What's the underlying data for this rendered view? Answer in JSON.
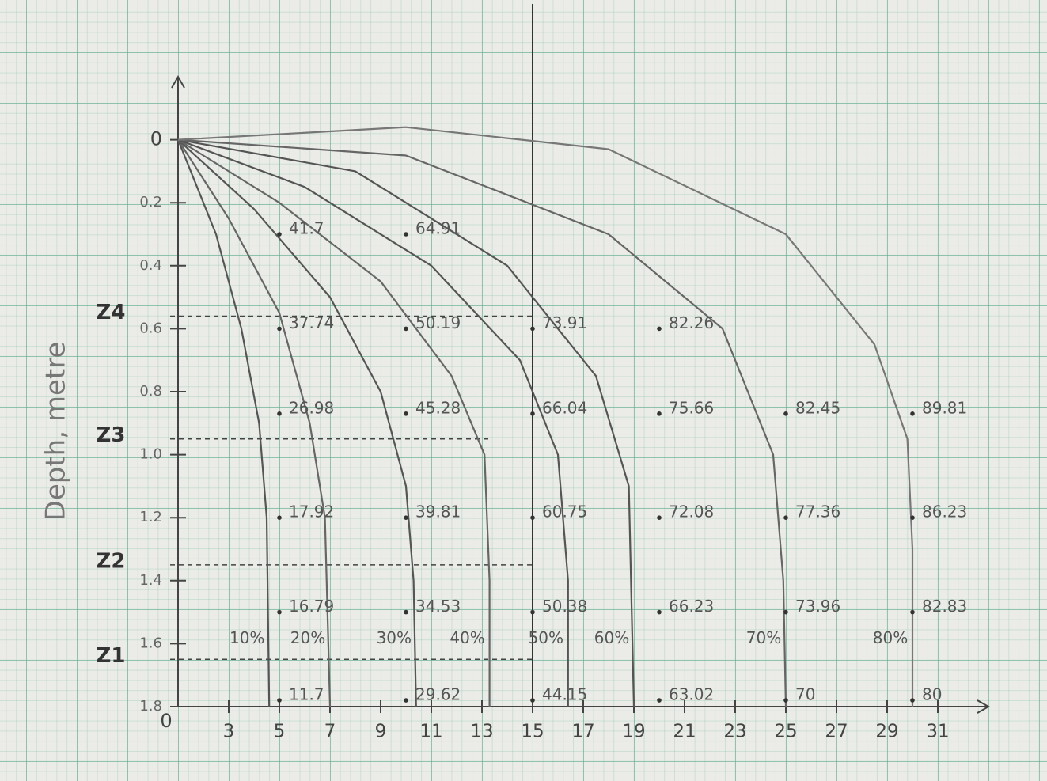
{
  "chart_data": {
    "type": "isoline",
    "y_label": "Depth, metre",
    "origin_label": "0",
    "xlim": [
      1,
      33
    ],
    "xticks": [
      3,
      5,
      7,
      9,
      11,
      13,
      15,
      17,
      19,
      21,
      23,
      25,
      27,
      29,
      31
    ],
    "ylim": [
      -0.2,
      1.8
    ],
    "y_inverted": true,
    "yticks": [
      0,
      0.2,
      0.4,
      0.6,
      0.8,
      {
        "value": 1,
        "label": "1.0"
      },
      1.2,
      1.4,
      1.6,
      1.8
    ],
    "series": [
      {
        "name": "10%",
        "color": "#555",
        "x": [
          1,
          2.5,
          3.5,
          4.2,
          4.5,
          4.6
        ],
        "y": [
          0,
          0.3,
          0.6,
          0.9,
          1.2,
          1.8
        ]
      },
      {
        "name": "20%",
        "color": "#666",
        "x": [
          1,
          3,
          5,
          6.2,
          6.8,
          7
        ],
        "y": [
          0,
          0.25,
          0.55,
          0.9,
          1.2,
          1.8
        ]
      },
      {
        "name": "30%",
        "color": "#555",
        "x": [
          1,
          4,
          7,
          9,
          10,
          10.3,
          10.4
        ],
        "y": [
          0,
          0.22,
          0.5,
          0.8,
          1.1,
          1.4,
          1.8
        ]
      },
      {
        "name": "40%",
        "color": "#666",
        "x": [
          1,
          5,
          9,
          11.8,
          13.1,
          13.3,
          13.3
        ],
        "y": [
          0,
          0.2,
          0.45,
          0.75,
          1.0,
          1.4,
          1.8
        ]
      },
      {
        "name": "50%",
        "color": "#555",
        "x": [
          1,
          6,
          11,
          14.5,
          16,
          16.4,
          16.4
        ],
        "y": [
          0,
          0.15,
          0.4,
          0.7,
          1.0,
          1.4,
          1.8
        ]
      },
      {
        "name": "60%",
        "color": "#555",
        "x": [
          1,
          8,
          14,
          17.5,
          18.8,
          19
        ],
        "y": [
          0,
          0.1,
          0.4,
          0.75,
          1.1,
          1.8
        ]
      },
      {
        "name": "70%",
        "color": "#666",
        "x": [
          1,
          10,
          18,
          22.5,
          24.5,
          24.9,
          25
        ],
        "y": [
          0,
          0.05,
          0.3,
          0.6,
          1.0,
          1.4,
          1.8
        ]
      },
      {
        "name": "80%",
        "color": "#777",
        "x": [
          1,
          10,
          18,
          25,
          28.5,
          29.8,
          30,
          30
        ],
        "y": [
          0,
          -0.04,
          0.03,
          0.3,
          0.65,
          0.95,
          1.3,
          1.8
        ]
      }
    ],
    "z_levels": [
      {
        "label": "Z4",
        "depth": 0.56,
        "x_end": 15
      },
      {
        "label": "Z3",
        "depth": 0.95,
        "x_end": 13.3
      },
      {
        "label": "Z2",
        "depth": 1.35,
        "x_end": 15
      },
      {
        "label": "Z1",
        "depth": 1.65,
        "x_end": 15
      }
    ],
    "points": [
      {
        "x": 5,
        "depth": 0.3,
        "value": 41.7
      },
      {
        "x": 5,
        "depth": 0.6,
        "value": 37.74
      },
      {
        "x": 5,
        "depth": 0.87,
        "value": 26.98
      },
      {
        "x": 5,
        "depth": 1.2,
        "value": 17.92
      },
      {
        "x": 5,
        "depth": 1.5,
        "value": 16.79
      },
      {
        "x": 5,
        "depth": 1.78,
        "value": 11.7
      },
      {
        "x": 10,
        "depth": 0.3,
        "value": 64.91
      },
      {
        "x": 10,
        "depth": 0.6,
        "value": 50.19
      },
      {
        "x": 10,
        "depth": 0.87,
        "value": 45.28
      },
      {
        "x": 10,
        "depth": 1.2,
        "value": 39.81
      },
      {
        "x": 10,
        "depth": 1.5,
        "value": 34.53
      },
      {
        "x": 10,
        "depth": 1.78,
        "value": 29.62
      },
      {
        "x": 15,
        "depth": 0.6,
        "value": 73.91
      },
      {
        "x": 15,
        "depth": 0.87,
        "value": 66.04
      },
      {
        "x": 15,
        "depth": 1.2,
        "value": 60.75
      },
      {
        "x": 15,
        "depth": 1.5,
        "value": 50.38
      },
      {
        "x": 15,
        "depth": 1.78,
        "value": 44.15
      },
      {
        "x": 20,
        "depth": 0.6,
        "value": 82.26
      },
      {
        "x": 20,
        "depth": 0.87,
        "value": 75.66
      },
      {
        "x": 20,
        "depth": 1.2,
        "value": 72.08
      },
      {
        "x": 20,
        "depth": 1.5,
        "value": 66.23
      },
      {
        "x": 20,
        "depth": 1.78,
        "value": 63.02
      },
      {
        "x": 25,
        "depth": 0.87,
        "value": 82.45
      },
      {
        "x": 25,
        "depth": 1.2,
        "value": 77.36
      },
      {
        "x": 25,
        "depth": 1.5,
        "value": 73.96
      },
      {
        "x": 25,
        "depth": 1.78,
        "value": 70
      },
      {
        "x": 30,
        "depth": 0.87,
        "value": 89.81
      },
      {
        "x": 30,
        "depth": 1.2,
        "value": 86.23
      },
      {
        "x": 30,
        "depth": 1.5,
        "value": 82.83
      },
      {
        "x": 30,
        "depth": 1.78,
        "value": 80
      }
    ]
  }
}
